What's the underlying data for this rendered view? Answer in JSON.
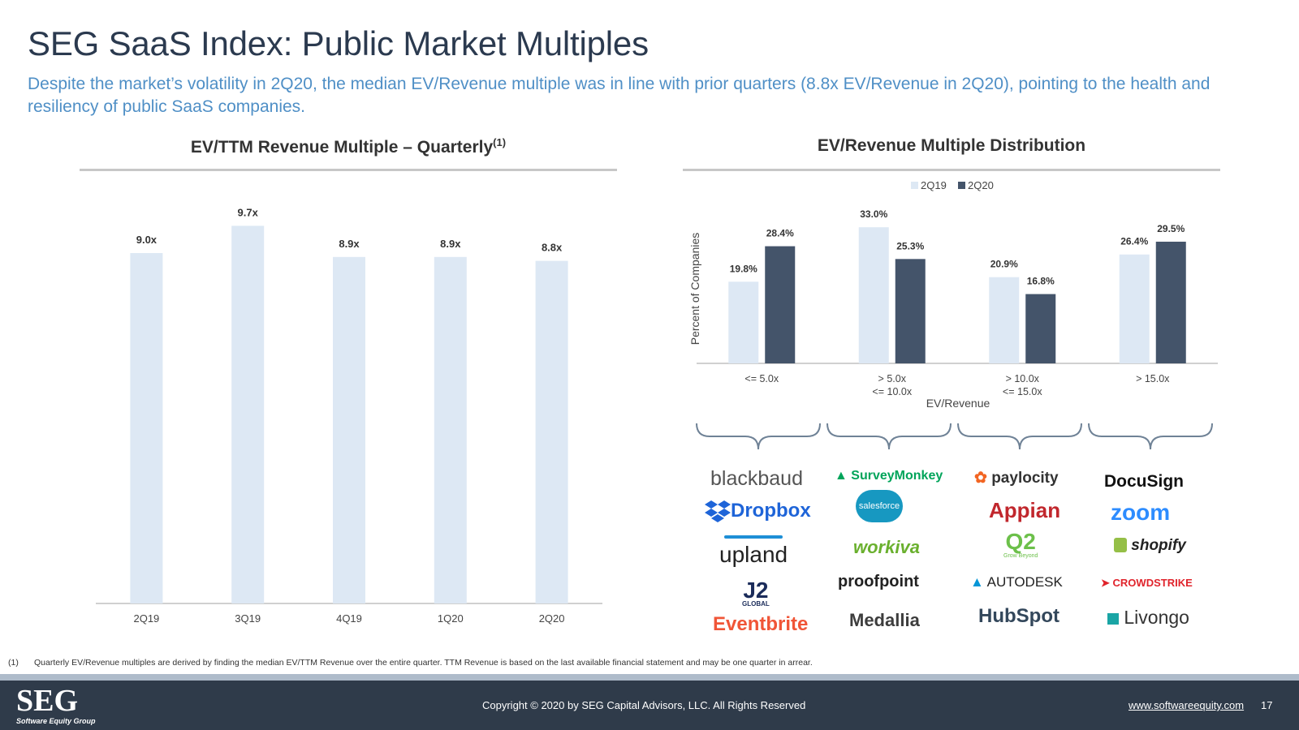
{
  "slide": {
    "title": "SEG SaaS Index: Public Market Multiples",
    "subtitle": "Despite the market’s volatility in 2Q20, the median EV/Revenue multiple was in line with prior quarters (8.8x EV/Revenue in 2Q20), pointing to the health and resiliency of public SaaS companies."
  },
  "left_panel": {
    "title": "EV/TTM Revenue Multiple – Quarterly",
    "footnote_ref": "(1)"
  },
  "right_panel": {
    "title": "EV/Revenue Multiple Distribution"
  },
  "colors": {
    "bar_light": "#dde8f4",
    "bar_dark": "#44546a",
    "subtitle": "#4f8fc6",
    "footer": "#2f3b4a"
  },
  "chart_data": [
    {
      "type": "bar",
      "title": "EV/TTM Revenue Multiple – Quarterly",
      "categories": [
        "2Q19",
        "3Q19",
        "4Q19",
        "1Q20",
        "2Q20"
      ],
      "values": [
        9.0,
        9.7,
        8.9,
        8.9,
        8.8
      ],
      "labels": [
        "9.0x",
        "9.7x",
        "8.9x",
        "8.9x",
        "8.8x"
      ],
      "ylim": [
        0,
        10.5
      ],
      "xlabel": "",
      "ylabel": ""
    },
    {
      "type": "bar",
      "title": "EV/Revenue Multiple Distribution",
      "categories": [
        [
          "<= 5.0x"
        ],
        [
          "> 5.0x",
          "<= 10.0x"
        ],
        [
          "> 10.0x",
          "<= 15.0x"
        ],
        [
          "> 15.0x"
        ]
      ],
      "series": [
        {
          "name": "2Q19",
          "values": [
            19.8,
            33.0,
            20.9,
            26.4
          ],
          "labels": [
            "19.8%",
            "33.0%",
            "20.9%",
            "26.4%"
          ]
        },
        {
          "name": "2Q20",
          "values": [
            28.4,
            25.3,
            16.8,
            29.5
          ],
          "labels": [
            "28.4%",
            "25.3%",
            "16.8%",
            "29.5%"
          ]
        }
      ],
      "xlabel": "EV/Revenue",
      "ylabel": "Percent of Companies",
      "ylim": [
        0,
        35
      ],
      "legend": "top-center"
    }
  ],
  "logos": [
    [
      "blackbaud",
      "Dropbox",
      "upland",
      "J2",
      "Eventbrite"
    ],
    [
      "SurveyMonkey",
      "salesforce",
      "workiva",
      "proofpoint",
      "Medallia"
    ],
    [
      "paylocity",
      "Appian",
      "Q2",
      "AUTODESK",
      "HubSpot"
    ],
    [
      "DocuSign",
      "zoom",
      "shopify",
      "CROWDSTRIKE",
      "Livongo"
    ]
  ],
  "logo_subtext": {
    "j2": "GLOBAL",
    "q2": "Grow Beyond"
  },
  "footnote": {
    "number": "(1)",
    "text": "Quarterly EV/Revenue multiples are derived by finding the median EV/TTM Revenue over the entire quarter. TTM Revenue is based on the last available financial statement and may be one quarter in arrear."
  },
  "footer": {
    "logo_text": "SEG",
    "logo_subtext": "Software Equity Group",
    "copyright": "Copyright © 2020 by SEG Capital Advisors, LLC. All Rights Reserved",
    "website": "www.softwareequity.com",
    "page_number": "17"
  }
}
